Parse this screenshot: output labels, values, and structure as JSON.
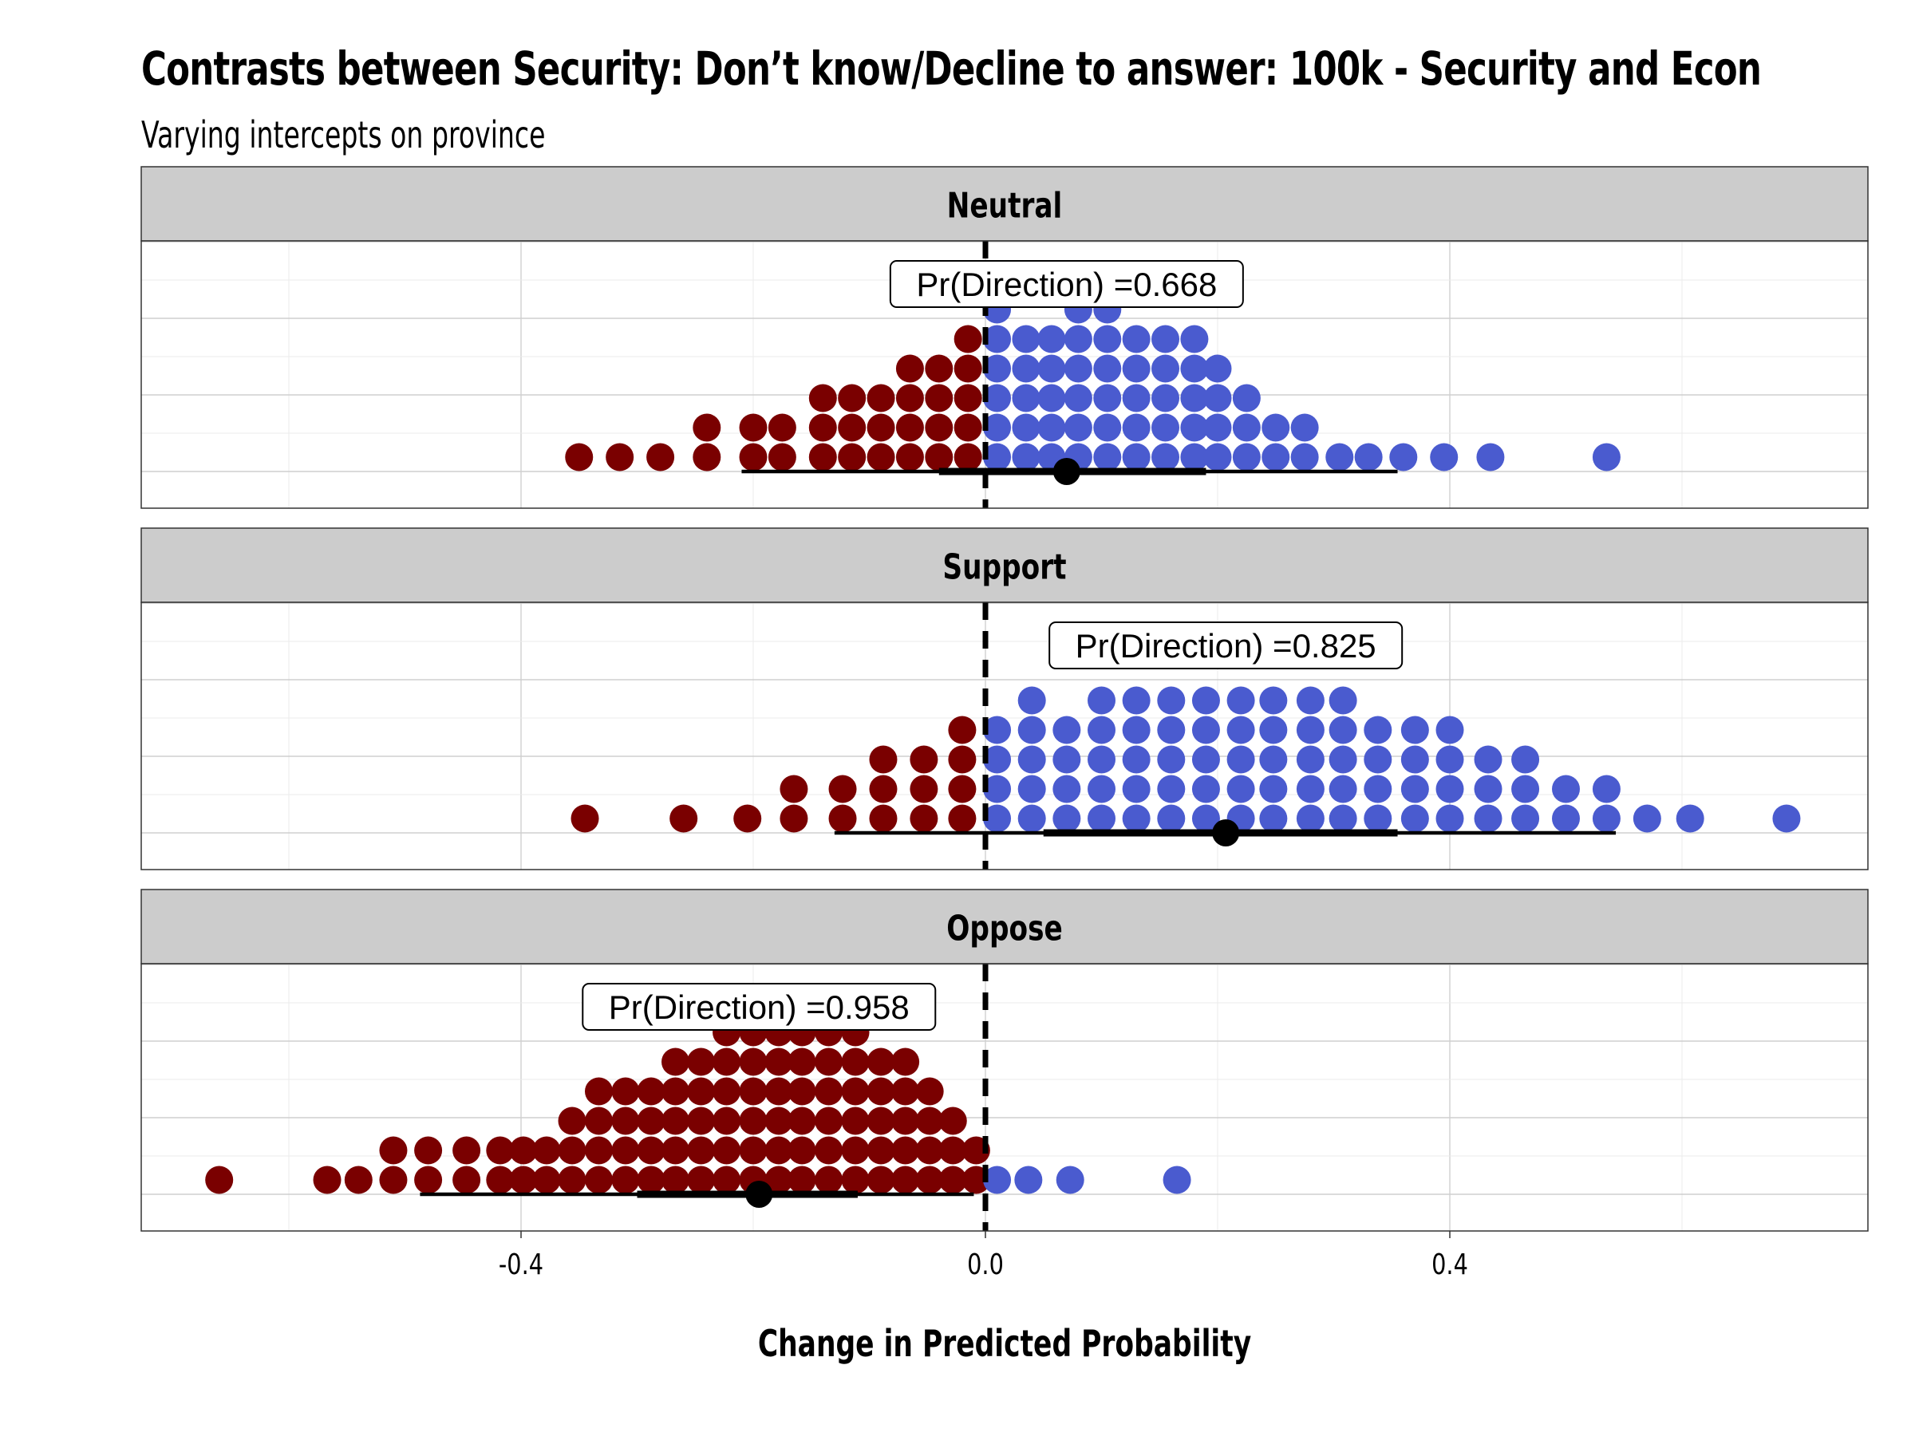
{
  "chart_data": {
    "type": "dotplot",
    "title": "Contrasts between Security: Don’t know/Decline to answer: 100k - Security and Econ",
    "subtitle": "Varying intercepts on province",
    "xlabel": "Change in Predicted Probability",
    "xlim": [
      -0.725,
      0.76
    ],
    "x_ticks": [
      -0.4,
      0.0,
      0.4
    ],
    "x_tick_labels": [
      "-0.4",
      "0.0",
      "0.4"
    ],
    "reference_line": 0.0,
    "grid": true,
    "colors": {
      "negative": "#7a0000",
      "positive": "#4a5bcf",
      "point": "#000000",
      "strip": "#cccccc"
    },
    "panels": [
      {
        "label": "Neutral",
        "pr_direction": "Pr(Direction) =0.668",
        "point_estimate": 0.07,
        "interval_inner": [
          -0.04,
          0.19
        ],
        "interval_outer": [
          -0.21,
          0.355
        ],
        "dot_columns": [
          [
            -0.35,
            1
          ],
          [
            -0.315,
            1
          ],
          [
            -0.28,
            1
          ],
          [
            -0.24,
            2
          ],
          [
            -0.2,
            2
          ],
          [
            -0.175,
            2
          ],
          [
            -0.14,
            3
          ],
          [
            -0.115,
            3
          ],
          [
            -0.09,
            3
          ],
          [
            -0.065,
            4
          ],
          [
            -0.04,
            4
          ],
          [
            -0.015,
            5
          ],
          [
            0.01,
            6
          ],
          [
            0.035,
            5
          ],
          [
            0.057,
            5
          ],
          [
            0.08,
            6
          ],
          [
            0.105,
            6
          ],
          [
            0.13,
            5
          ],
          [
            0.155,
            5
          ],
          [
            0.18,
            5
          ],
          [
            0.2,
            4
          ],
          [
            0.225,
            3
          ],
          [
            0.25,
            2
          ],
          [
            0.275,
            2
          ],
          [
            0.305,
            1
          ],
          [
            0.33,
            1
          ],
          [
            0.36,
            1
          ],
          [
            0.395,
            1
          ],
          [
            0.435,
            1
          ],
          [
            0.535,
            1
          ]
        ]
      },
      {
        "label": "Support",
        "pr_direction": "Pr(Direction) =0.825",
        "point_estimate": 0.207,
        "interval_inner": [
          0.05,
          0.355
        ],
        "interval_outer": [
          -0.13,
          0.543
        ],
        "dot_columns": [
          [
            -0.345,
            1
          ],
          [
            -0.26,
            1
          ],
          [
            -0.205,
            1
          ],
          [
            -0.165,
            2
          ],
          [
            -0.123,
            2
          ],
          [
            -0.088,
            3
          ],
          [
            -0.053,
            3
          ],
          [
            -0.02,
            4
          ],
          [
            0.01,
            4
          ],
          [
            0.04,
            5
          ],
          [
            0.07,
            4
          ],
          [
            0.1,
            5
          ],
          [
            0.13,
            5
          ],
          [
            0.16,
            5
          ],
          [
            0.19,
            5
          ],
          [
            0.22,
            5
          ],
          [
            0.248,
            5
          ],
          [
            0.28,
            5
          ],
          [
            0.308,
            5
          ],
          [
            0.338,
            4
          ],
          [
            0.37,
            4
          ],
          [
            0.4,
            4
          ],
          [
            0.433,
            3
          ],
          [
            0.465,
            3
          ],
          [
            0.5,
            2
          ],
          [
            0.535,
            2
          ],
          [
            0.57,
            1
          ],
          [
            0.607,
            1
          ],
          [
            0.69,
            1
          ]
        ]
      },
      {
        "label": "Oppose",
        "pr_direction": "Pr(Direction) =0.958",
        "point_estimate": -0.195,
        "interval_inner": [
          -0.3,
          -0.11
        ],
        "interval_outer": [
          -0.487,
          -0.01
        ],
        "dot_columns": [
          [
            -0.66,
            1
          ],
          [
            -0.567,
            1
          ],
          [
            -0.54,
            1
          ],
          [
            -0.51,
            2
          ],
          [
            -0.48,
            2
          ],
          [
            -0.447,
            2
          ],
          [
            -0.418,
            2
          ],
          [
            -0.398,
            2
          ],
          [
            -0.378,
            2
          ],
          [
            -0.356,
            3
          ],
          [
            -0.333,
            4
          ],
          [
            -0.31,
            4
          ],
          [
            -0.288,
            4
          ],
          [
            -0.267,
            5
          ],
          [
            -0.245,
            5
          ],
          [
            -0.223,
            6
          ],
          [
            -0.2,
            6
          ],
          [
            -0.178,
            6
          ],
          [
            -0.158,
            7
          ],
          [
            -0.135,
            6
          ],
          [
            -0.112,
            6
          ],
          [
            -0.09,
            5
          ],
          [
            -0.069,
            5
          ],
          [
            -0.048,
            4
          ],
          [
            -0.028,
            3
          ],
          [
            -0.008,
            2
          ],
          [
            0.01,
            1
          ],
          [
            0.037,
            1
          ],
          [
            0.073,
            1
          ],
          [
            0.165,
            1
          ]
        ]
      }
    ]
  }
}
